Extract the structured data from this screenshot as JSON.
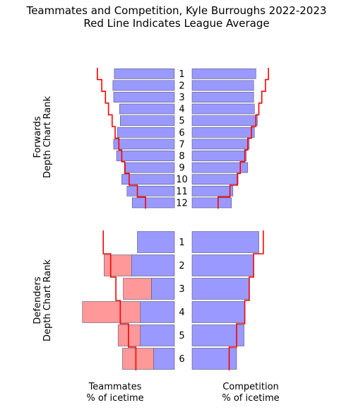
{
  "chart_data": {
    "type": "bar",
    "title": "Teammates and Competition, Kyle Burroughs 2022-2023",
    "subtitle": "Red Line Indicates League Average",
    "left_label": [
      "Teammates",
      "% of icetime"
    ],
    "right_label": [
      "Competition",
      "% of icetime"
    ],
    "colors": {
      "bar": "#9999ff",
      "player_bar": "#ff9999",
      "league_line": "#ff0000",
      "edge": "#555577"
    },
    "panels": [
      {
        "name": "forwards",
        "ylabel": [
          "Forwards",
          "Depth Chart Rank"
        ],
        "categories": [
          "1",
          "2",
          "3",
          "4",
          "5",
          "6",
          "7",
          "8",
          "9",
          "10",
          "11",
          "12"
        ],
        "series": [
          {
            "side": "left",
            "values": [
              81,
              83,
              82,
              74,
              73,
              77,
              82,
              78,
              66,
              71,
              64,
              57
            ]
          },
          {
            "side": "right",
            "values": [
              86,
              83,
              83,
              84,
              88,
              84,
              77,
              73,
              75,
              62,
              55,
              53
            ]
          },
          {
            "side": "left_league",
            "values": [
              104,
              98,
              93,
              89,
              84,
              80,
              75,
              71,
              67,
              61,
              50,
              39
            ]
          },
          {
            "side": "right_league",
            "values": [
              103,
              99,
              94,
              90,
              86,
              80,
              75,
              71,
              65,
              61,
              51,
              35
            ]
          }
        ]
      },
      {
        "name": "defenders",
        "ylabel": [
          "Defenders",
          "Depth Chart Rank"
        ],
        "categories": [
          "1",
          "2",
          "3",
          "4",
          "5",
          "6"
        ],
        "series": [
          {
            "side": "left",
            "values": [
              50,
              58,
              31,
              46,
              46,
              28
            ]
          },
          {
            "side": "left_player",
            "values": [
              0,
              37,
              38,
              78,
              30,
              42
            ]
          },
          {
            "side": "right",
            "values": [
              90,
              83,
              77,
              71,
              70,
              60
            ]
          },
          {
            "side": "right_league",
            "values": [
              96,
              83,
              77,
              71,
              60,
              50
            ]
          },
          {
            "side": "left_league",
            "values": [
              96,
              86,
              79,
              73,
              62,
              52
            ]
          }
        ]
      }
    ]
  }
}
